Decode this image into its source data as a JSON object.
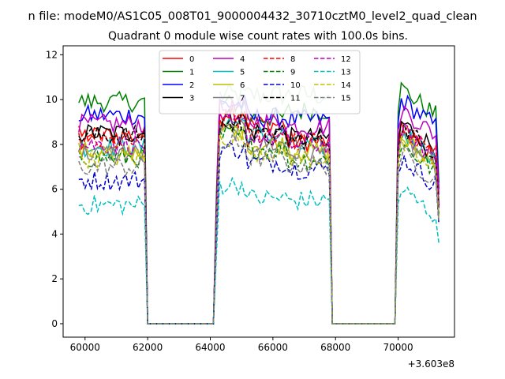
{
  "chart_data": {
    "type": "line",
    "suptitle": "n file: modeM0/AS1C05_008T01_9000004432_30710cztM0_level2_quad_clean",
    "title": "Quadrant 0 module wise count rates with 100.0s bins.",
    "xlabel": "",
    "ylabel": "",
    "x_offset_label": "+3.603e8",
    "xlim": [
      59300,
      71800
    ],
    "ylim": [
      -0.6,
      12.4
    ],
    "x_ticks": [
      60000,
      62000,
      64000,
      66000,
      68000,
      70000
    ],
    "x_tick_labels": [
      "60000",
      "62000",
      "64000",
      "66000",
      "68000",
      "70000"
    ],
    "y_ticks": [
      0,
      2,
      4,
      6,
      8,
      10,
      12
    ],
    "y_tick_labels": [
      "0",
      "2",
      "4",
      "6",
      "8",
      "10",
      "12"
    ],
    "grid": false,
    "legend": {
      "placement": "top-center",
      "columns": 4
    },
    "series": [
      {
        "name": "0",
        "color": "#ff0000",
        "dash": "solid",
        "levels": [
          8.4,
          8.9,
          8.1,
          8.6
        ]
      },
      {
        "name": "1",
        "color": "#008000",
        "dash": "solid",
        "levels": [
          9.9,
          9.2,
          9.5,
          10.5
        ]
      },
      {
        "name": "2",
        "color": "#0000ff",
        "dash": "solid",
        "levels": [
          9.3,
          9.2,
          9.1,
          10.0
        ]
      },
      {
        "name": "3",
        "color": "#000000",
        "dash": "solid",
        "levels": [
          8.5,
          8.6,
          8.3,
          9.0
        ]
      },
      {
        "name": "4",
        "color": "#bf00bf",
        "dash": "solid",
        "levels": [
          8.9,
          9.0,
          8.8,
          9.6
        ]
      },
      {
        "name": "5",
        "color": "#00bfbf",
        "dash": "solid",
        "levels": [
          7.9,
          8.4,
          7.9,
          8.6
        ]
      },
      {
        "name": "6",
        "color": "#bfbf00",
        "dash": "solid",
        "levels": [
          7.7,
          8.0,
          7.7,
          8.3
        ]
      },
      {
        "name": "7",
        "color": "#808080",
        "dash": "solid",
        "levels": [
          7.6,
          8.0,
          7.6,
          8.2
        ]
      },
      {
        "name": "8",
        "color": "#ff0000",
        "dash": "dashed",
        "levels": [
          8.1,
          8.5,
          8.1,
          8.7
        ]
      },
      {
        "name": "9",
        "color": "#008000",
        "dash": "dashed",
        "levels": [
          7.4,
          7.8,
          7.3,
          8.0
        ]
      },
      {
        "name": "10",
        "color": "#0000cd",
        "dash": "dashed",
        "levels": [
          6.4,
          7.2,
          6.9,
          7.4
        ]
      },
      {
        "name": "11",
        "color": "#000000",
        "dash": "dashed",
        "levels": [
          8.4,
          8.3,
          8.2,
          8.8
        ]
      },
      {
        "name": "12",
        "color": "#bf00bf",
        "dash": "dashed",
        "levels": [
          8.0,
          8.3,
          8.0,
          8.6
        ]
      },
      {
        "name": "13",
        "color": "#00bfbf",
        "dash": "dashed",
        "levels": [
          5.3,
          5.6,
          5.5,
          6.0
        ]
      },
      {
        "name": "14",
        "color": "#bfbf00",
        "dash": "dashed",
        "levels": [
          7.4,
          7.7,
          7.4,
          8.0
        ]
      },
      {
        "name": "15",
        "color": "#808080",
        "dash": "dashed",
        "levels": [
          7.0,
          7.4,
          7.1,
          7.6
        ]
      }
    ],
    "segments": [
      {
        "x_start": 59800,
        "x_end": 61900
      },
      {
        "x_start": 64300,
        "x_end": 67800
      },
      {
        "x_start": 70100,
        "x_end": 71200
      }
    ],
    "gaps": [
      {
        "x_start": 62100,
        "x_end": 64100
      },
      {
        "x_start": 68000,
        "x_end": 69900
      }
    ],
    "extra_series": [
      {
        "color": "#7fbf7f",
        "dash": "solid",
        "level": 10.2,
        "x_start": 64300,
        "x_end": 68000,
        "x_end2": 71200
      }
    ]
  }
}
